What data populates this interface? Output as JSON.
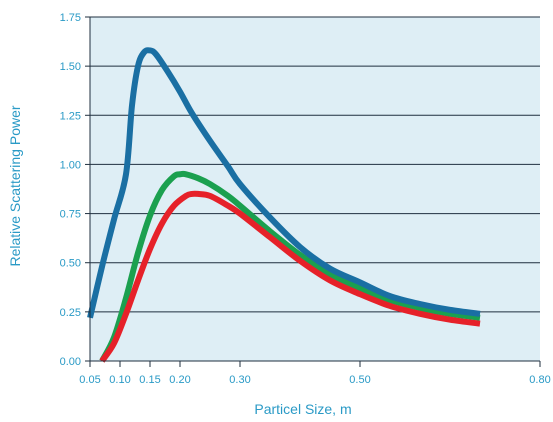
{
  "chart_data": {
    "type": "line",
    "title": "",
    "xlabel": "Particel Size, m",
    "ylabel": "Relative Scattering Power",
    "xlim": [
      0.05,
      0.8
    ],
    "ylim": [
      0.0,
      1.75
    ],
    "x_ticks": [
      0.05,
      0.1,
      0.15,
      0.2,
      0.3,
      0.5,
      0.8
    ],
    "x_tick_labels": [
      "0.05",
      "0.10",
      "0.15",
      "0.20",
      "0.30",
      "0.50",
      "0.80"
    ],
    "y_ticks": [
      0,
      0.25,
      0.5,
      0.75,
      1.0,
      1.25,
      1.5,
      1.75
    ],
    "y_tick_labels": [
      "0.00",
      "0.25",
      "0.50",
      "0.75",
      "1.00",
      "1.25",
      "1.50",
      "1.75"
    ],
    "grid": "horizontal",
    "plot_background": "#deeef5",
    "series": [
      {
        "color": "#1a6fa3",
        "x": [
          0.05,
          0.07,
          0.09,
          0.11,
          0.12,
          0.13,
          0.14,
          0.15,
          0.16,
          0.18,
          0.2,
          0.22,
          0.25,
          0.28,
          0.3,
          0.35,
          0.4,
          0.45,
          0.5,
          0.55,
          0.6,
          0.65,
          0.7
        ],
        "y": [
          0.22,
          0.48,
          0.72,
          0.95,
          1.3,
          1.5,
          1.57,
          1.58,
          1.56,
          1.47,
          1.37,
          1.26,
          1.12,
          0.99,
          0.9,
          0.73,
          0.58,
          0.47,
          0.4,
          0.33,
          0.29,
          0.26,
          0.24
        ]
      },
      {
        "color": "#1ba04f",
        "x": [
          0.07,
          0.09,
          0.11,
          0.13,
          0.15,
          0.17,
          0.19,
          0.2,
          0.21,
          0.23,
          0.25,
          0.28,
          0.3,
          0.35,
          0.4,
          0.45,
          0.5,
          0.55,
          0.6,
          0.65,
          0.7
        ],
        "y": [
          0.0,
          0.12,
          0.32,
          0.55,
          0.74,
          0.87,
          0.94,
          0.95,
          0.95,
          0.93,
          0.9,
          0.84,
          0.79,
          0.66,
          0.54,
          0.44,
          0.37,
          0.31,
          0.27,
          0.24,
          0.22
        ]
      },
      {
        "color": "#e62129",
        "x": [
          0.07,
          0.09,
          0.11,
          0.13,
          0.15,
          0.17,
          0.19,
          0.21,
          0.22,
          0.23,
          0.25,
          0.28,
          0.3,
          0.35,
          0.4,
          0.45,
          0.5,
          0.55,
          0.6,
          0.65,
          0.7
        ],
        "y": [
          0.0,
          0.09,
          0.24,
          0.41,
          0.57,
          0.7,
          0.79,
          0.84,
          0.85,
          0.85,
          0.84,
          0.79,
          0.75,
          0.63,
          0.51,
          0.41,
          0.34,
          0.28,
          0.24,
          0.21,
          0.19
        ]
      }
    ]
  }
}
